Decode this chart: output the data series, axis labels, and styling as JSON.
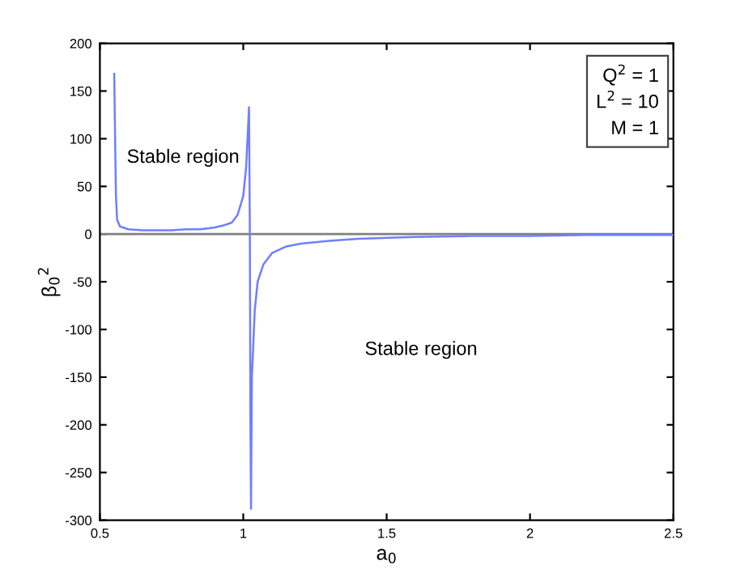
{
  "chart_data": {
    "type": "line",
    "xlabel": "a$_{0}$",
    "ylabel": "β$_{0}$$^{2}$",
    "x": [
      0.55,
      0.553,
      0.556,
      0.56,
      0.57,
      0.6,
      0.65,
      0.7,
      0.75,
      0.8,
      0.85,
      0.9,
      0.93,
      0.96,
      0.98,
      1.0,
      1.01,
      1.02,
      1.023,
      1.025,
      1.027,
      1.03,
      1.04,
      1.05,
      1.07,
      1.1,
      1.15,
      1.2,
      1.3,
      1.4,
      1.6,
      1.8,
      2.0,
      2.2,
      2.5
    ],
    "series": [
      {
        "color": "#6f7fff",
        "values": [
          168,
          100,
          40,
          15,
          8,
          5,
          4,
          4,
          4,
          5,
          5,
          7,
          9,
          12,
          20,
          40,
          70,
          133,
          0,
          -200,
          -288,
          -150,
          -80,
          -50,
          -32,
          -20,
          -13,
          -10,
          -7,
          -5,
          -3,
          -2,
          -2,
          -1,
          -1
        ]
      }
    ],
    "xlim": [
      0.5,
      2.5
    ],
    "ylim": [
      -300,
      200
    ],
    "xticks": [
      0.5,
      1,
      1.5,
      2,
      2.5
    ],
    "yticks": [
      -300,
      -250,
      -200,
      -150,
      -100,
      -50,
      0,
      50,
      100,
      150,
      200
    ],
    "ref_lines": [
      {
        "axis": "y",
        "value": 0,
        "color": "#808080"
      }
    ],
    "annotations": [
      "Stable region",
      "Stable region",
      "Q$^{2}$ = 1\nL$^{2}$ = 10\nM = 1"
    ],
    "grid": false
  }
}
